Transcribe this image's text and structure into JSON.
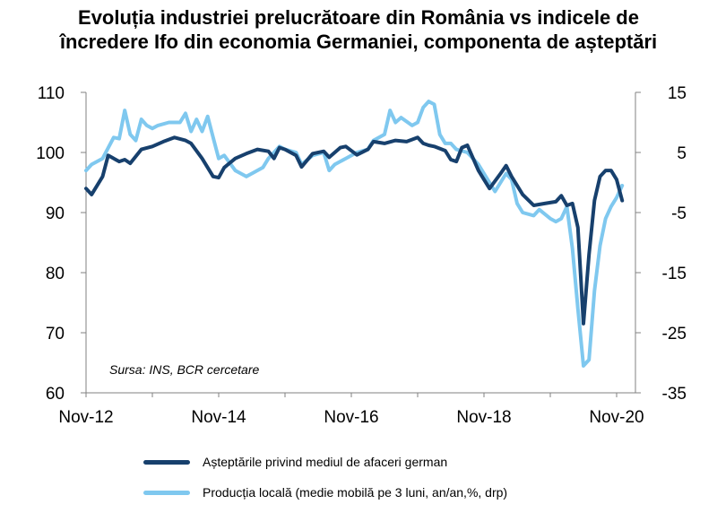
{
  "title_line1": "Evoluția industriei prelucrătoare din România vs indicele de",
  "title_line2": "încredere Ifo din economia Germaniei, componenta de așteptări",
  "source_note": "Sursa: INS, BCR cercetare",
  "colors": {
    "ifo": "#17406d",
    "productie": "#7fc8ef",
    "axis": "#808080"
  },
  "chart_data": {
    "type": "line",
    "x_tick_labels": [
      "Nov-12",
      "Nov-14",
      "Nov-16",
      "Nov-18",
      "Nov-20"
    ],
    "x_start": "2012-11",
    "x_end": "2020-11",
    "y_left": {
      "range": [
        60,
        110
      ],
      "ticks": [
        60,
        70,
        80,
        90,
        100,
        110
      ]
    },
    "y_right": {
      "range": [
        -35,
        15
      ],
      "ticks": [
        -35,
        -25,
        -15,
        -5,
        5,
        15
      ]
    },
    "grid": false,
    "legend_position": "bottom",
    "series": [
      {
        "name": "Așteptările privind mediul de afaceri german",
        "axis": "left",
        "color": "#17406d",
        "values": [
          [
            "2012-11",
            94
          ],
          [
            "2012-12",
            93
          ],
          [
            "2013-02",
            96
          ],
          [
            "2013-03",
            99.5
          ],
          [
            "2013-05",
            98.5
          ],
          [
            "2013-06",
            98.8
          ],
          [
            "2013-07",
            98.2
          ],
          [
            "2013-09",
            100.5
          ],
          [
            "2013-11",
            101
          ],
          [
            "2014-01",
            101.8
          ],
          [
            "2014-03",
            102.5
          ],
          [
            "2014-05",
            102
          ],
          [
            "2014-06",
            101.5
          ],
          [
            "2014-08",
            99
          ],
          [
            "2014-09",
            97.5
          ],
          [
            "2014-10",
            96
          ],
          [
            "2014-11",
            95.8
          ],
          [
            "2014-12",
            97.5
          ],
          [
            "2015-02",
            99
          ],
          [
            "2015-04",
            99.8
          ],
          [
            "2015-06",
            100.5
          ],
          [
            "2015-08",
            100.2
          ],
          [
            "2015-09",
            99
          ],
          [
            "2015-10",
            100.8
          ],
          [
            "2015-11",
            100.5
          ],
          [
            "2016-01",
            99.5
          ],
          [
            "2016-02",
            97.6
          ],
          [
            "2016-04",
            99.8
          ],
          [
            "2016-06",
            100.2
          ],
          [
            "2016-07",
            99.2
          ],
          [
            "2016-09",
            100.8
          ],
          [
            "2016-10",
            101
          ],
          [
            "2016-12",
            99.6
          ],
          [
            "2017-02",
            100.5
          ],
          [
            "2017-03",
            101.8
          ],
          [
            "2017-05",
            101.5
          ],
          [
            "2017-07",
            102
          ],
          [
            "2017-09",
            101.8
          ],
          [
            "2017-11",
            102.5
          ],
          [
            "2017-12",
            101.5
          ],
          [
            "2018-01",
            101.2
          ],
          [
            "2018-02",
            101
          ],
          [
            "2018-04",
            100.3
          ],
          [
            "2018-05",
            98.8
          ],
          [
            "2018-06",
            98.5
          ],
          [
            "2018-07",
            100.8
          ],
          [
            "2018-08",
            101.2
          ],
          [
            "2018-10",
            97
          ],
          [
            "2018-11",
            95.5
          ],
          [
            "2018-12",
            94
          ],
          [
            "2019-02",
            96.5
          ],
          [
            "2019-03",
            97.8
          ],
          [
            "2019-04",
            96
          ],
          [
            "2019-06",
            93
          ],
          [
            "2019-08",
            91.2
          ],
          [
            "2019-10",
            91.5
          ],
          [
            "2019-12",
            91.8
          ],
          [
            "2020-01",
            92.8
          ],
          [
            "2020-02",
            91.2
          ],
          [
            "2020-03",
            91.5
          ],
          [
            "2020-04",
            87.5
          ],
          [
            "2020-05",
            71.5
          ],
          [
            "2020-06",
            83
          ],
          [
            "2020-07",
            92
          ],
          [
            "2020-08",
            96
          ],
          [
            "2020-09",
            97
          ],
          [
            "2020-10",
            97
          ],
          [
            "2020-11",
            95.5
          ],
          [
            "2020-12",
            92
          ]
        ]
      },
      {
        "name": "Producția locală (medie mobilă pe 3 luni, an/an,%, drp)",
        "axis": "right",
        "color": "#7fc8ef",
        "values": [
          [
            "2012-11",
            2
          ],
          [
            "2012-12",
            3
          ],
          [
            "2013-02",
            4
          ],
          [
            "2013-04",
            7.5
          ],
          [
            "2013-05",
            7.3
          ],
          [
            "2013-06",
            12
          ],
          [
            "2013-07",
            8
          ],
          [
            "2013-08",
            7
          ],
          [
            "2013-09",
            10.5
          ],
          [
            "2013-10",
            9.5
          ],
          [
            "2013-11",
            9
          ],
          [
            "2013-12",
            9.5
          ],
          [
            "2014-02",
            10
          ],
          [
            "2014-04",
            10
          ],
          [
            "2014-05",
            11.5
          ],
          [
            "2014-06",
            8.5
          ],
          [
            "2014-07",
            10.5
          ],
          [
            "2014-08",
            8.5
          ],
          [
            "2014-09",
            11
          ],
          [
            "2014-10",
            7.5
          ],
          [
            "2014-11",
            4
          ],
          [
            "2014-12",
            4.5
          ],
          [
            "2015-02",
            2
          ],
          [
            "2015-04",
            1
          ],
          [
            "2015-05",
            1.5
          ],
          [
            "2015-07",
            2.5
          ],
          [
            "2015-08",
            4
          ],
          [
            "2015-10",
            6
          ],
          [
            "2015-11",
            5.5
          ],
          [
            "2016-01",
            5
          ],
          [
            "2016-02",
            3
          ],
          [
            "2016-04",
            4.5
          ],
          [
            "2016-06",
            5
          ],
          [
            "2016-07",
            2
          ],
          [
            "2016-08",
            3
          ],
          [
            "2016-10",
            4
          ],
          [
            "2016-12",
            5
          ],
          [
            "2017-02",
            5.5
          ],
          [
            "2017-03",
            7
          ],
          [
            "2017-05",
            8
          ],
          [
            "2017-06",
            12
          ],
          [
            "2017-07",
            10
          ],
          [
            "2017-08",
            10.8
          ],
          [
            "2017-10",
            9.5
          ],
          [
            "2017-11",
            10
          ],
          [
            "2017-12",
            12.5
          ],
          [
            "2018-01",
            13.5
          ],
          [
            "2018-02",
            13
          ],
          [
            "2018-03",
            8
          ],
          [
            "2018-04",
            6.5
          ],
          [
            "2018-05",
            6.5
          ],
          [
            "2018-06",
            5.5
          ],
          [
            "2018-08",
            5
          ],
          [
            "2018-10",
            3
          ],
          [
            "2018-11",
            1.5
          ],
          [
            "2019-01",
            -1.5
          ],
          [
            "2019-03",
            1.5
          ],
          [
            "2019-04",
            0.5
          ],
          [
            "2019-05",
            -3.5
          ],
          [
            "2019-06",
            -5
          ],
          [
            "2019-08",
            -5.5
          ],
          [
            "2019-09",
            -4.5
          ],
          [
            "2019-11",
            -6
          ],
          [
            "2019-12",
            -6.5
          ],
          [
            "2020-01",
            -6
          ],
          [
            "2020-02",
            -4
          ],
          [
            "2020-03",
            -11
          ],
          [
            "2020-04",
            -21
          ],
          [
            "2020-05",
            -30.5
          ],
          [
            "2020-06",
            -29.5
          ],
          [
            "2020-07",
            -18
          ],
          [
            "2020-08",
            -10.5
          ],
          [
            "2020-09",
            -6
          ],
          [
            "2020-10",
            -4
          ],
          [
            "2020-11",
            -2.5
          ],
          [
            "2020-12",
            -0.5
          ]
        ]
      }
    ]
  }
}
